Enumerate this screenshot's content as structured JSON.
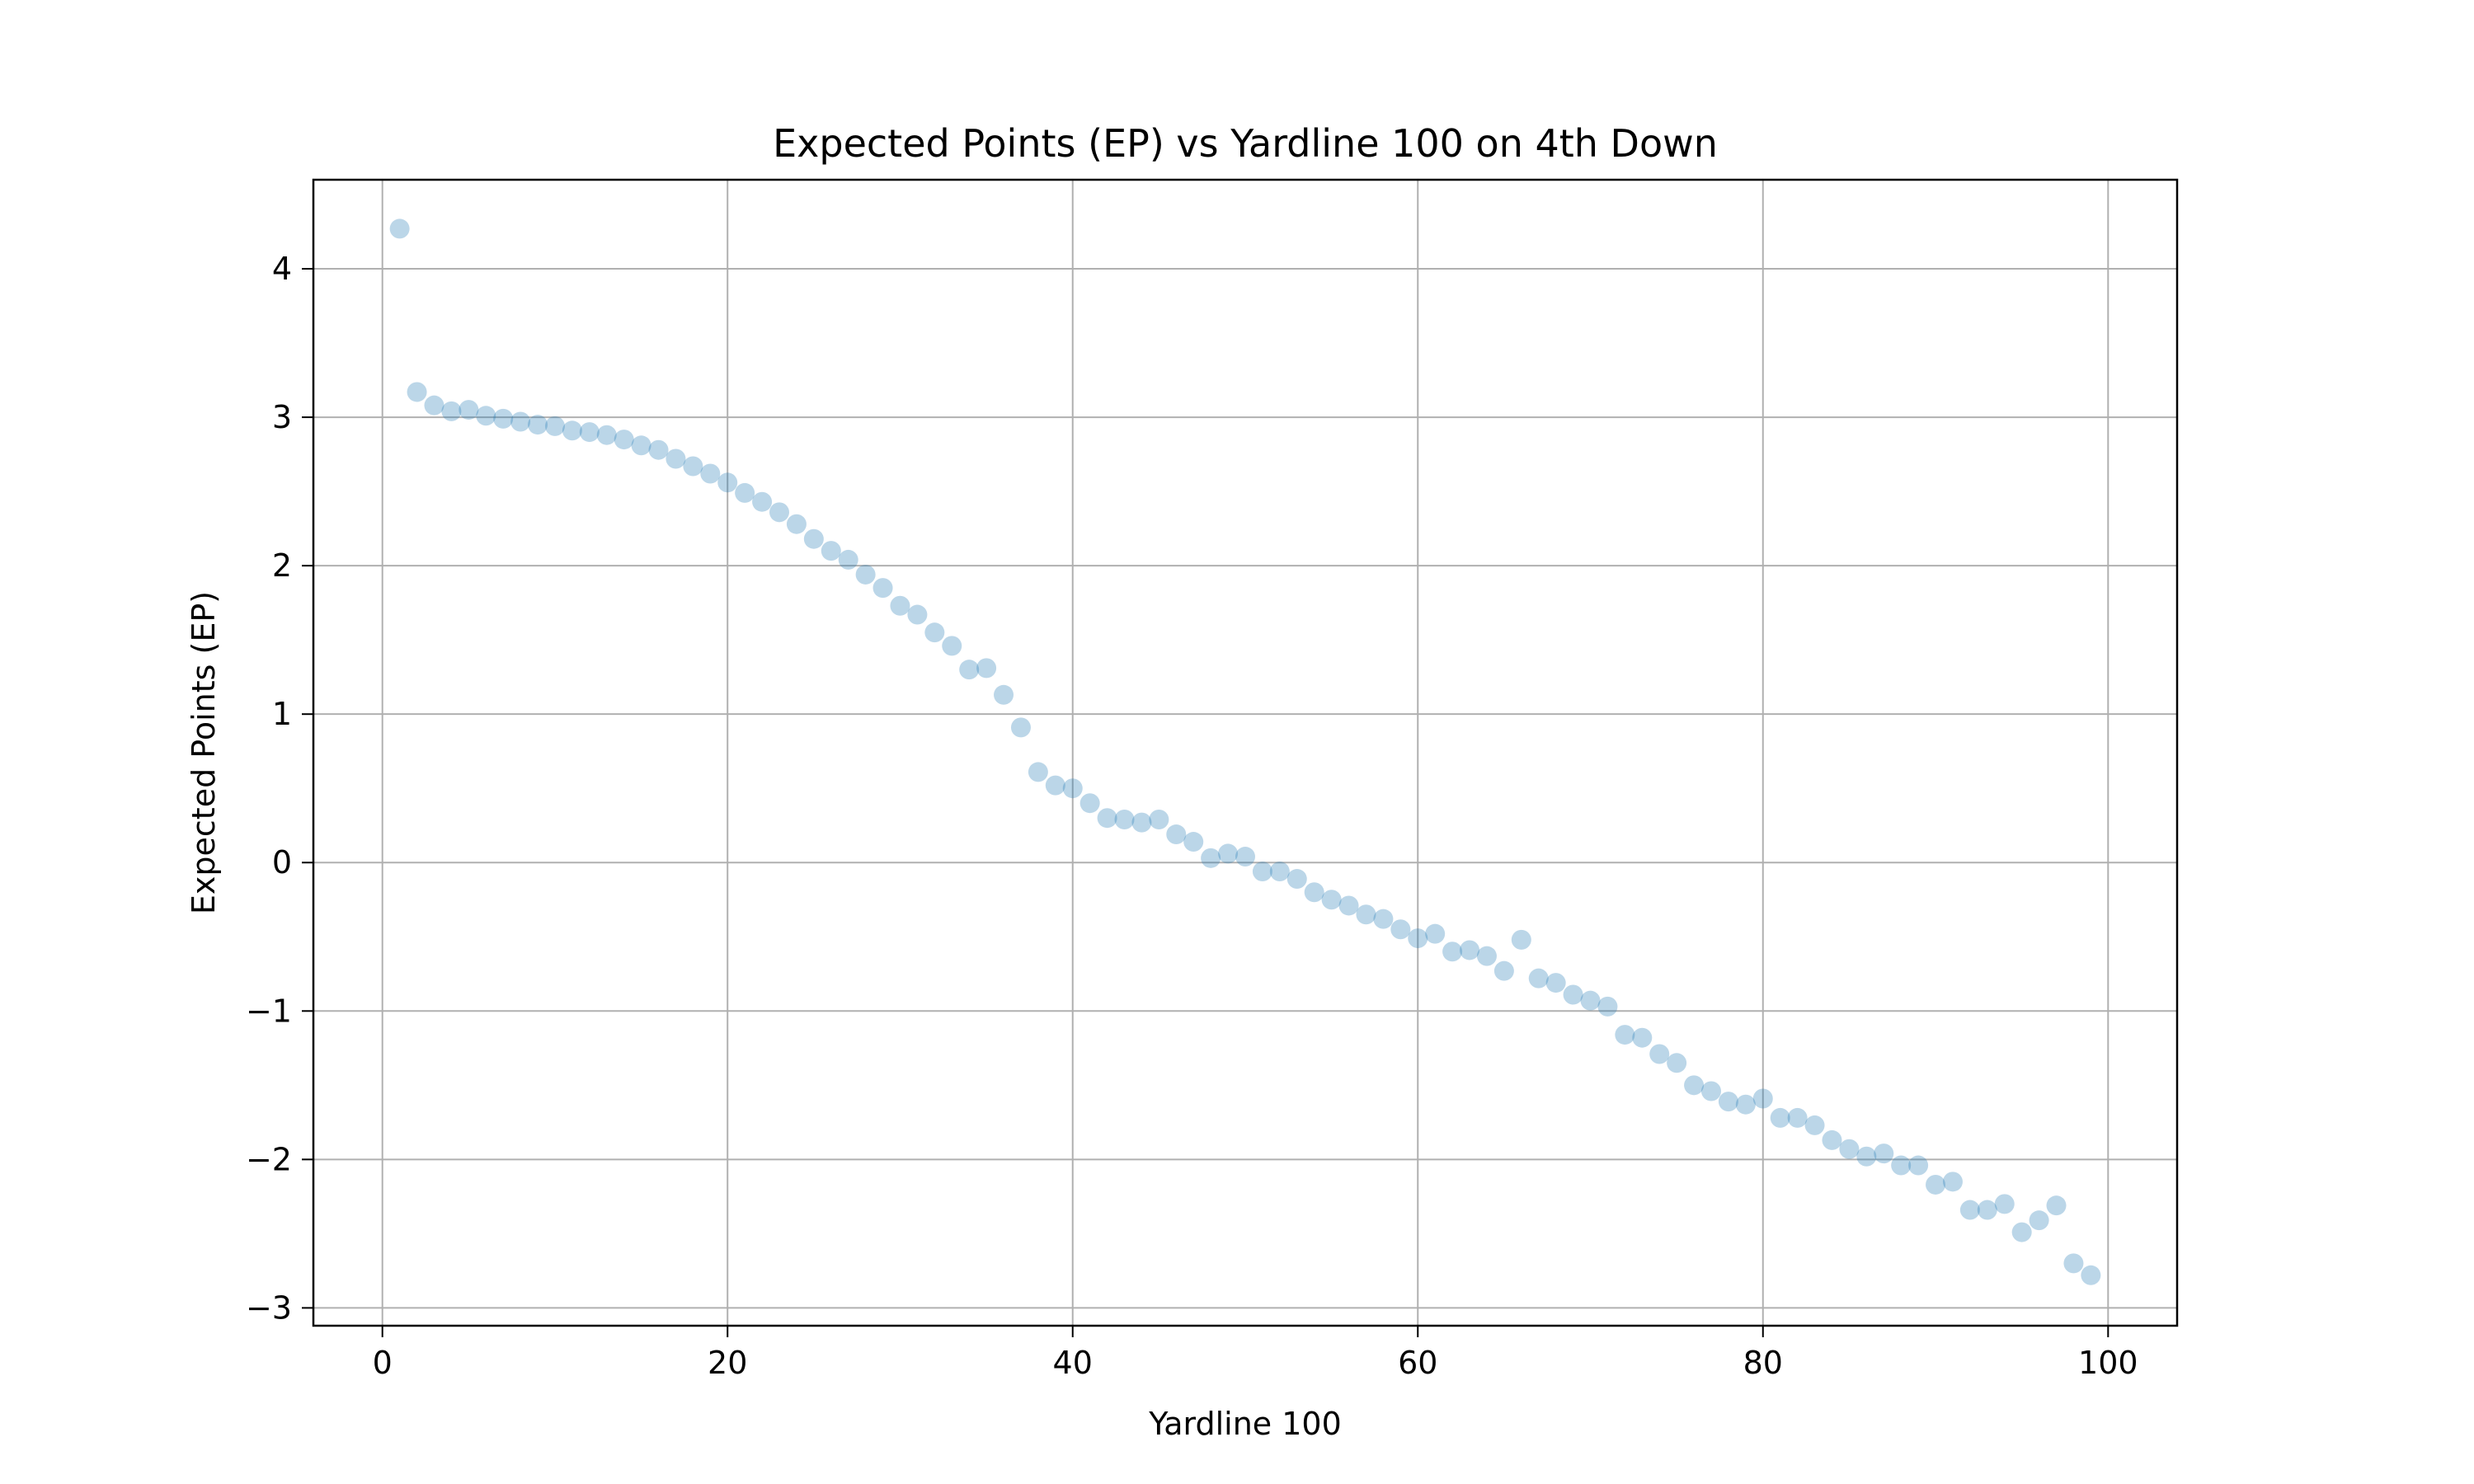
{
  "chart_data": {
    "type": "scatter",
    "title": "Expected Points (EP) vs Yardline 100 on 4th Down",
    "xlabel": "Yardline 100",
    "ylabel": "Expected Points (EP)",
    "xlim": [
      -4,
      104
    ],
    "ylim": [
      -3.12,
      4.6
    ],
    "x_ticks": [
      0,
      20,
      40,
      60,
      80,
      100
    ],
    "x_tick_labels": [
      "0",
      "20",
      "40",
      "60",
      "80",
      "100"
    ],
    "y_ticks": [
      -3,
      -2,
      -1,
      0,
      1,
      2,
      3,
      4
    ],
    "y_tick_labels": [
      "−3",
      "−2",
      "−1",
      "0",
      "1",
      "2",
      "3",
      "4"
    ],
    "grid": true,
    "marker_color": "#1f77b4",
    "marker_alpha": 0.3,
    "series": [
      {
        "x": [
          1,
          2,
          3,
          4,
          5,
          6,
          7,
          8,
          9,
          10,
          11,
          12,
          13,
          14,
          15,
          16,
          17,
          18,
          19,
          20,
          21,
          22,
          23,
          24,
          25,
          26,
          27,
          28,
          29,
          30,
          31,
          32,
          33,
          34,
          35,
          36,
          37,
          38,
          39,
          40,
          41,
          42,
          43,
          44,
          45,
          46,
          47,
          48,
          49,
          50,
          51,
          52,
          53,
          54,
          55,
          56,
          57,
          58,
          59,
          60,
          61,
          62,
          63,
          64,
          65,
          66,
          67,
          68,
          69,
          70,
          71,
          72,
          73,
          74,
          75,
          76,
          77,
          78,
          79,
          80,
          81,
          82,
          83,
          84,
          85,
          86,
          87,
          88,
          89,
          90,
          91,
          92,
          93,
          94,
          95,
          96,
          97,
          98,
          99
        ],
        "y": [
          4.27,
          3.17,
          3.08,
          3.04,
          3.05,
          3.01,
          2.99,
          2.97,
          2.95,
          2.94,
          2.91,
          2.9,
          2.88,
          2.85,
          2.81,
          2.78,
          2.72,
          2.67,
          2.62,
          2.56,
          2.49,
          2.43,
          2.36,
          2.28,
          2.18,
          2.1,
          2.04,
          1.94,
          1.85,
          1.73,
          1.67,
          1.55,
          1.46,
          1.3,
          1.31,
          1.13,
          0.91,
          0.61,
          0.52,
          0.5,
          0.4,
          0.3,
          0.29,
          0.27,
          0.29,
          0.19,
          0.14,
          0.03,
          0.06,
          0.04,
          -0.06,
          -0.06,
          -0.11,
          -0.2,
          -0.25,
          -0.29,
          -0.35,
          -0.38,
          -0.45,
          -0.51,
          -0.48,
          -0.6,
          -0.59,
          -0.63,
          -0.73,
          -0.52,
          -0.78,
          -0.81,
          -0.89,
          -0.93,
          -0.97,
          -1.16,
          -1.18,
          -1.29,
          -1.35,
          -1.5,
          -1.54,
          -1.61,
          -1.63,
          -1.59,
          -1.72,
          -1.72,
          -1.77,
          -1.87,
          -1.93,
          -1.98,
          -1.96,
          -2.04,
          -2.04,
          -2.17,
          -2.15,
          -2.34,
          -2.34,
          -2.3,
          -2.49,
          -2.41,
          -2.31,
          -2.7,
          -2.78
        ]
      }
    ]
  }
}
